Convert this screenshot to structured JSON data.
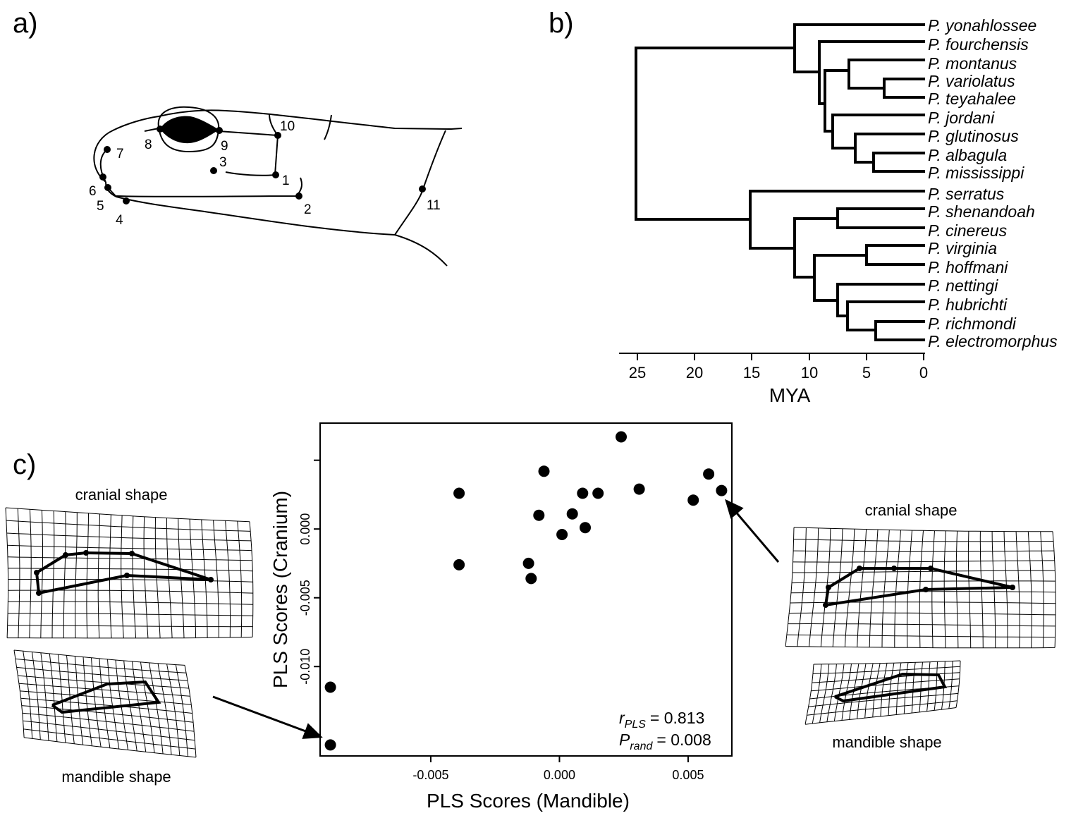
{
  "panel_labels": {
    "a": "a)",
    "b": "b)",
    "c": "c)"
  },
  "panel_a": {
    "landmarks": [
      "1",
      "2",
      "3",
      "4",
      "5",
      "6",
      "7",
      "8",
      "9",
      "10",
      "11"
    ]
  },
  "panel_b": {
    "taxa": [
      "P. yonahlossee",
      "P. fourchensis",
      "P. montanus",
      "P. variolatus",
      "P. teyahalee",
      "P. jordani",
      "P. glutinosus",
      "P. albagula",
      "P. mississippi",
      "P. serratus",
      "P. shenandoah",
      "P. cinereus",
      "P. virginia",
      "P. hoffmani",
      "P. nettingi",
      "P. hubrichti",
      "P. richmondi",
      "P. electromorphus"
    ],
    "axis_ticks": [
      "25",
      "20",
      "15",
      "10",
      "5",
      "0"
    ],
    "axis_label": "MYA"
  },
  "chart_data": {
    "type": "scatter",
    "title": "",
    "xlabel": "PLS Scores (Mandible)",
    "ylabel": "PLS Scores (Cranium)",
    "xlim": [
      -0.0093,
      0.0067
    ],
    "ylim": [
      -0.0165,
      0.0077
    ],
    "x_ticks": [
      -0.005,
      0.0,
      0.005
    ],
    "x_tick_labels": [
      "-0.005",
      "0.000",
      "0.005"
    ],
    "y_ticks": [
      -0.01,
      -0.005,
      0.0
    ],
    "y_tick_labels": [
      "-0.010",
      "-0.005",
      "0.000"
    ],
    "grid": false,
    "points": [
      {
        "x": 0.0024,
        "y": 0.0067
      },
      {
        "x": -0.0006,
        "y": 0.0042
      },
      {
        "x": 0.0058,
        "y": 0.004
      },
      {
        "x": 0.0031,
        "y": 0.0029
      },
      {
        "x": 0.0063,
        "y": 0.0028
      },
      {
        "x": -0.0039,
        "y": 0.0026
      },
      {
        "x": 0.0009,
        "y": 0.0026
      },
      {
        "x": 0.0015,
        "y": 0.0026
      },
      {
        "x": 0.0052,
        "y": 0.0021
      },
      {
        "x": 0.0005,
        "y": 0.0011
      },
      {
        "x": -0.0008,
        "y": 0.001
      },
      {
        "x": 0.001,
        "y": 0.0001
      },
      {
        "x": 0.0001,
        "y": -0.0004
      },
      {
        "x": -0.0039,
        "y": -0.0026
      },
      {
        "x": -0.0012,
        "y": -0.0025
      },
      {
        "x": -0.0011,
        "y": -0.0036
      },
      {
        "x": -0.0089,
        "y": -0.0115
      },
      {
        "x": -0.0089,
        "y": -0.0157
      }
    ],
    "annotations": {
      "r_symbol": "r",
      "r_sub": "PLS",
      "r_value": "= 0.813",
      "p_symbol": "P",
      "p_sub": "rand",
      "p_value": "= 0.008"
    }
  },
  "deformation_grids": {
    "left_cranial_caption": "cranial shape",
    "left_mandible_caption": "mandible shape",
    "right_cranial_caption": "cranial shape",
    "right_mandible_caption": "mandible shape"
  }
}
